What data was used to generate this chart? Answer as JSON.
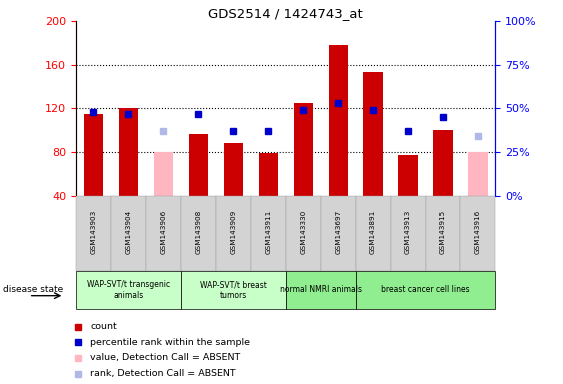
{
  "title": "GDS2514 / 1424743_at",
  "samples": [
    "GSM143903",
    "GSM143904",
    "GSM143906",
    "GSM143908",
    "GSM143909",
    "GSM143911",
    "GSM143330",
    "GSM143697",
    "GSM143891",
    "GSM143913",
    "GSM143915",
    "GSM143916"
  ],
  "count_values": [
    115,
    120,
    null,
    97,
    88,
    79,
    125,
    178,
    153,
    77,
    100,
    null
  ],
  "absent_value_values": [
    null,
    null,
    80,
    null,
    null,
    null,
    null,
    null,
    null,
    null,
    null,
    80
  ],
  "percentile_rank": [
    48,
    47,
    null,
    47,
    37,
    37,
    49,
    53,
    49,
    37,
    45,
    null
  ],
  "absent_rank_values": [
    null,
    null,
    37,
    null,
    null,
    null,
    null,
    null,
    null,
    null,
    null,
    34
  ],
  "ylim_left": [
    40,
    200
  ],
  "ylim_right": [
    0,
    100
  ],
  "yticks_left": [
    40,
    80,
    120,
    160,
    200
  ],
  "yticks_right": [
    0,
    25,
    50,
    75,
    100
  ],
  "ytick_right_labels": [
    "0%",
    "25%",
    "50%",
    "75%",
    "100%"
  ],
  "bar_width": 0.55,
  "count_color": "#cc0000",
  "absent_val_color": "#ffb6c1",
  "rank_color": "#0000cc",
  "absent_rank_color": "#b0b8e8",
  "group_defs": [
    {
      "label": "WAP-SVT/t transgenic\nanimals",
      "xmin": -0.5,
      "xmax": 2.5,
      "color": "#c8ffc8"
    },
    {
      "label": "WAP-SVT/t breast\ntumors",
      "xmin": 2.5,
      "xmax": 5.5,
      "color": "#c8ffc8"
    },
    {
      "label": "normal NMRI animals",
      "xmin": 5.5,
      "xmax": 7.5,
      "color": "#90ee90"
    },
    {
      "label": "breast cancer cell lines",
      "xmin": 7.5,
      "xmax": 11.5,
      "color": "#90ee90"
    }
  ],
  "disease_state_label": "disease state",
  "legend_items": [
    {
      "label": "count",
      "color": "#cc0000"
    },
    {
      "label": "percentile rank within the sample",
      "color": "#0000cc"
    },
    {
      "label": "value, Detection Call = ABSENT",
      "color": "#ffb6c1"
    },
    {
      "label": "rank, Detection Call = ABSENT",
      "color": "#b0b8e8"
    }
  ]
}
